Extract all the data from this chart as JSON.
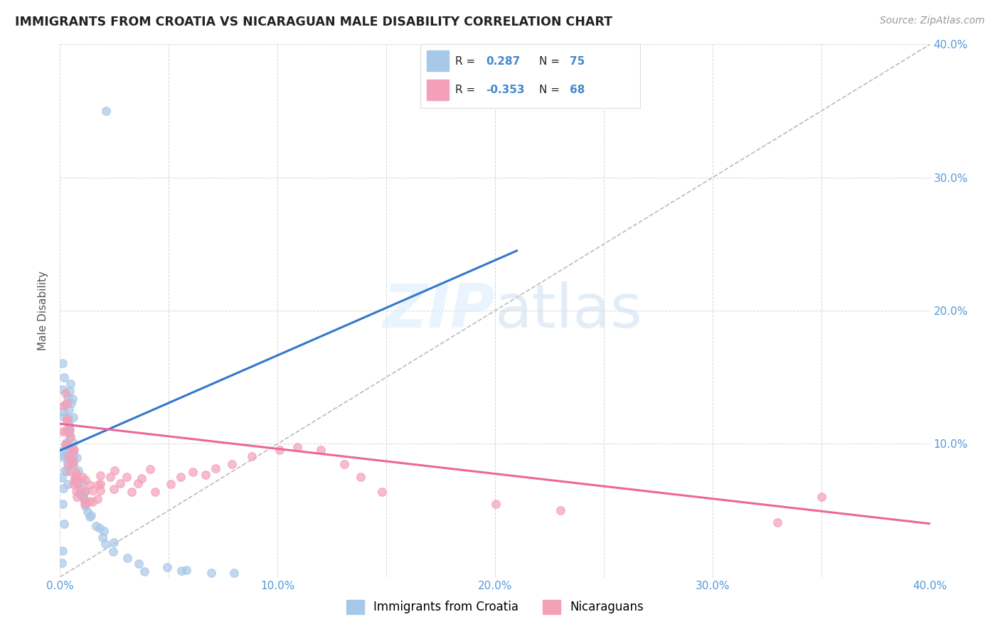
{
  "title": "IMMIGRANTS FROM CROATIA VS NICARAGUAN MALE DISABILITY CORRELATION CHART",
  "source": "Source: ZipAtlas.com",
  "ylabel": "Male Disability",
  "xlim": [
    0.0,
    0.4
  ],
  "ylim": [
    0.0,
    0.4
  ],
  "xtick_labels": [
    "0.0%",
    "",
    "10.0%",
    "",
    "20.0%",
    "",
    "30.0%",
    "",
    "40.0%"
  ],
  "xtick_vals": [
    0.0,
    0.05,
    0.1,
    0.15,
    0.2,
    0.25,
    0.3,
    0.35,
    0.4
  ],
  "ytick_labels_right": [
    "",
    "10.0%",
    "20.0%",
    "30.0%",
    "40.0%"
  ],
  "ytick_vals": [
    0.0,
    0.1,
    0.2,
    0.3,
    0.4
  ],
  "grid_color": "#cccccc",
  "background_color": "#ffffff",
  "legend_R1": "0.287",
  "legend_N1": "75",
  "legend_R2": "-0.353",
  "legend_N2": "68",
  "color_blue": "#a8c8e8",
  "color_pink": "#f4a0b8",
  "line_blue": "#3377cc",
  "line_pink": "#ee6699",
  "line_diag": "#bbbbbb",
  "legend_label1": "Immigrants from Croatia",
  "legend_label2": "Nicaraguans",
  "croatia_x": [
    0.001,
    0.001,
    0.002,
    0.002,
    0.002,
    0.002,
    0.002,
    0.002,
    0.002,
    0.002,
    0.002,
    0.003,
    0.003,
    0.003,
    0.003,
    0.003,
    0.003,
    0.003,
    0.003,
    0.003,
    0.003,
    0.004,
    0.004,
    0.004,
    0.004,
    0.004,
    0.004,
    0.004,
    0.005,
    0.005,
    0.005,
    0.005,
    0.005,
    0.005,
    0.005,
    0.005,
    0.005,
    0.005,
    0.005,
    0.005,
    0.006,
    0.006,
    0.006,
    0.006,
    0.007,
    0.007,
    0.007,
    0.008,
    0.008,
    0.009,
    0.01,
    0.01,
    0.01,
    0.011,
    0.011,
    0.012,
    0.012,
    0.013,
    0.015,
    0.015,
    0.018,
    0.02,
    0.02,
    0.022,
    0.025,
    0.025,
    0.03,
    0.035,
    0.04,
    0.05,
    0.055,
    0.06,
    0.07,
    0.08,
    0.02
  ],
  "croatia_y": [
    0.01,
    0.02,
    0.04,
    0.055,
    0.065,
    0.075,
    0.08,
    0.085,
    0.09,
    0.095,
    0.1,
    0.07,
    0.08,
    0.09,
    0.1,
    0.11,
    0.12,
    0.13,
    0.14,
    0.15,
    0.16,
    0.095,
    0.1,
    0.11,
    0.115,
    0.12,
    0.125,
    0.135,
    0.09,
    0.095,
    0.1,
    0.105,
    0.11,
    0.115,
    0.12,
    0.125,
    0.13,
    0.135,
    0.14,
    0.145,
    0.085,
    0.09,
    0.095,
    0.1,
    0.08,
    0.085,
    0.09,
    0.07,
    0.075,
    0.065,
    0.06,
    0.065,
    0.07,
    0.055,
    0.06,
    0.05,
    0.055,
    0.045,
    0.04,
    0.045,
    0.035,
    0.03,
    0.035,
    0.025,
    0.02,
    0.025,
    0.015,
    0.01,
    0.005,
    0.008,
    0.006,
    0.004,
    0.003,
    0.002,
    0.35
  ],
  "nicaragua_x": [
    0.002,
    0.002,
    0.003,
    0.003,
    0.003,
    0.004,
    0.004,
    0.004,
    0.005,
    0.005,
    0.005,
    0.005,
    0.005,
    0.005,
    0.005,
    0.005,
    0.005,
    0.006,
    0.006,
    0.006,
    0.007,
    0.007,
    0.008,
    0.008,
    0.009,
    0.009,
    0.01,
    0.01,
    0.01,
    0.011,
    0.012,
    0.012,
    0.013,
    0.014,
    0.015,
    0.015,
    0.016,
    0.017,
    0.018,
    0.019,
    0.02,
    0.022,
    0.024,
    0.025,
    0.027,
    0.03,
    0.032,
    0.035,
    0.038,
    0.04,
    0.045,
    0.05,
    0.055,
    0.06,
    0.065,
    0.07,
    0.08,
    0.09,
    0.1,
    0.11,
    0.12,
    0.13,
    0.14,
    0.15,
    0.2,
    0.23,
    0.33,
    0.35
  ],
  "nicaragua_y": [
    0.11,
    0.13,
    0.1,
    0.12,
    0.14,
    0.09,
    0.11,
    0.13,
    0.075,
    0.08,
    0.085,
    0.09,
    0.095,
    0.1,
    0.105,
    0.11,
    0.115,
    0.075,
    0.085,
    0.095,
    0.07,
    0.08,
    0.065,
    0.075,
    0.06,
    0.07,
    0.055,
    0.065,
    0.075,
    0.06,
    0.065,
    0.075,
    0.06,
    0.07,
    0.055,
    0.065,
    0.06,
    0.07,
    0.075,
    0.065,
    0.07,
    0.075,
    0.08,
    0.065,
    0.07,
    0.075,
    0.065,
    0.07,
    0.075,
    0.08,
    0.065,
    0.07,
    0.075,
    0.08,
    0.075,
    0.08,
    0.085,
    0.09,
    0.095,
    0.1,
    0.095,
    0.085,
    0.075,
    0.065,
    0.055,
    0.05,
    0.04,
    0.06
  ],
  "blue_trend_x0": 0.0,
  "blue_trend_x1": 0.21,
  "blue_trend_y0": 0.095,
  "blue_trend_y1": 0.245,
  "pink_trend_x0": 0.0,
  "pink_trend_x1": 0.4,
  "pink_trend_y0": 0.115,
  "pink_trend_y1": 0.04
}
